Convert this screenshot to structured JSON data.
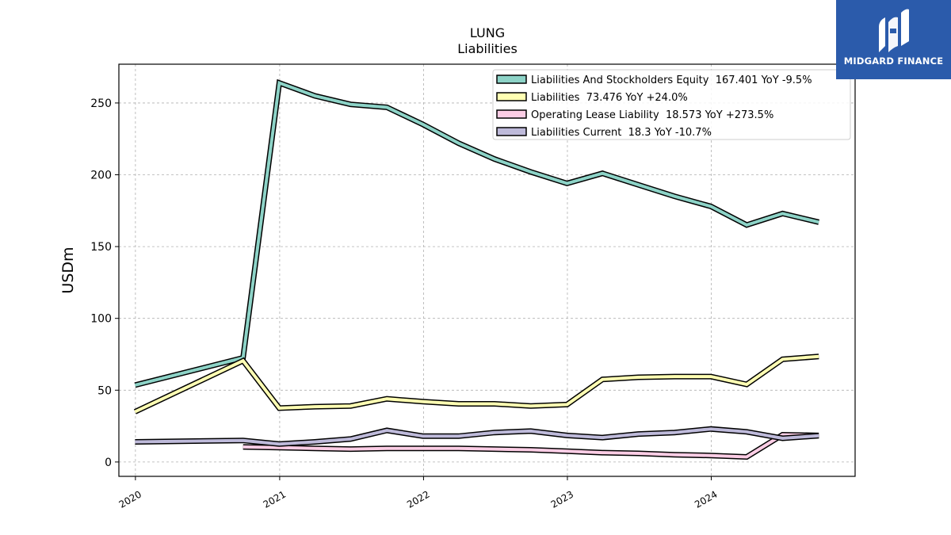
{
  "brand": {
    "name": "MIDGARD FINANCE",
    "color": "#2b5bab",
    "icon": "midgard-logo-icon"
  },
  "chart_data": {
    "type": "line",
    "title": "LUNG",
    "subtitle": "Liabilities",
    "xlabel": "",
    "ylabel": "USDm",
    "xlim": [
      "2019-11-20",
      "2024-12-31"
    ],
    "ylim": [
      -10,
      277
    ],
    "xticks": [
      "2020",
      "2021",
      "2022",
      "2023",
      "2024"
    ],
    "yticks": [
      0,
      50,
      100,
      150,
      200,
      250
    ],
    "grid": true,
    "legend": "top-right",
    "series": [
      {
        "name": "Liabilities And Stockholders Equity  167.401 YoY -9.5%",
        "color": "#8dd3c7",
        "x": [
          "2019-12-31",
          "2020-09-30",
          "2020-12-31",
          "2021-03-31",
          "2021-06-30",
          "2021-09-30",
          "2021-12-31",
          "2022-03-31",
          "2022-06-30",
          "2022-09-30",
          "2022-12-31",
          "2023-03-31",
          "2023-06-30",
          "2023-09-30",
          "2023-12-31",
          "2024-03-31",
          "2024-06-30",
          "2024-09-30"
        ],
        "y": [
          53.5,
          72.5,
          264,
          255,
          249,
          247,
          235,
          222,
          211,
          202,
          194,
          201,
          193,
          185,
          178,
          165,
          173,
          167
        ]
      },
      {
        "name": "Liabilities  73.476 YoY +24.0%",
        "color": "#ffffb3",
        "x": [
          "2019-12-31",
          "2020-09-30",
          "2020-12-31",
          "2021-03-31",
          "2021-06-30",
          "2021-09-30",
          "2021-12-31",
          "2022-03-31",
          "2022-06-30",
          "2022-09-30",
          "2022-12-31",
          "2023-03-31",
          "2023-06-30",
          "2023-09-30",
          "2023-12-31",
          "2024-03-31",
          "2024-06-30",
          "2024-09-30"
        ],
        "y": [
          35,
          70.5,
          37.5,
          38.5,
          39,
          44,
          42,
          40.5,
          40.5,
          39,
          40,
          57.5,
          59,
          59.5,
          59.5,
          54,
          71.5,
          73.5
        ]
      },
      {
        "name": "Operating Lease Liability  18.573 YoY +273.5%",
        "color": "#fccde5",
        "x": [
          "2020-09-30",
          "2020-12-31",
          "2021-03-31",
          "2021-06-30",
          "2021-09-30",
          "2021-12-31",
          "2022-03-31",
          "2022-06-30",
          "2022-09-30",
          "2022-12-31",
          "2023-03-31",
          "2023-06-30",
          "2023-09-30",
          "2023-12-31",
          "2024-03-31",
          "2024-06-30",
          "2024-09-30"
        ],
        "y": [
          10.5,
          10,
          9.5,
          9,
          9.5,
          9.5,
          9.5,
          9,
          8.5,
          7.5,
          6.5,
          6,
          5,
          4.5,
          3.5,
          19,
          18.5
        ]
      },
      {
        "name": "Liabilities Current  18.3 YoY -10.7%",
        "color": "#bebada",
        "x": [
          "2019-12-31",
          "2020-09-30",
          "2020-12-31",
          "2021-03-31",
          "2021-06-30",
          "2021-09-30",
          "2021-12-31",
          "2022-03-31",
          "2022-06-30",
          "2022-09-30",
          "2022-12-31",
          "2023-03-31",
          "2023-06-30",
          "2023-09-30",
          "2023-12-31",
          "2024-03-31",
          "2024-06-30",
          "2024-09-30"
        ],
        "y": [
          14,
          15,
          12.5,
          14,
          16,
          22,
          18,
          18,
          20.5,
          21.5,
          18.5,
          17,
          19.5,
          20.5,
          23,
          21,
          16.5,
          18.3
        ]
      }
    ]
  }
}
